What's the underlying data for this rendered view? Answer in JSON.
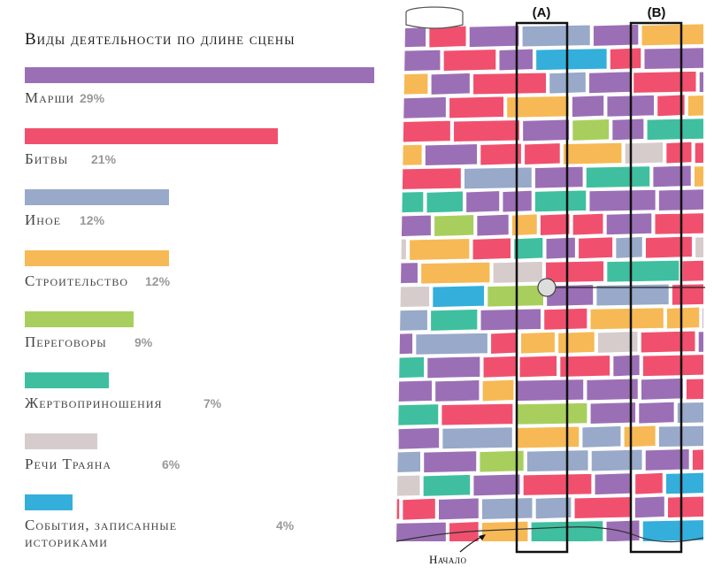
{
  "chart_data": {
    "type": "bar",
    "title": "Виды деятельности по длине сцены",
    "categories": [
      "Марши",
      "Битвы",
      "Иное",
      "Строительство",
      "Переговоры",
      "Жертвоприношения",
      "Речи Траяна",
      "События, записанные историками"
    ],
    "category_lines": [
      [
        "Марши"
      ],
      [
        "Битвы"
      ],
      [
        "Иное"
      ],
      [
        "Строительство"
      ],
      [
        "Переговоры"
      ],
      [
        "Жертвоприношения"
      ],
      [
        "Речи Траяна"
      ],
      [
        "События, записанные",
        "историками"
      ]
    ],
    "values": [
      29,
      21,
      12,
      12,
      9,
      7,
      6,
      4
    ],
    "value_labels": [
      "29%",
      "21%",
      "12%",
      "12%",
      "9%",
      "7%",
      "6%",
      "4%"
    ],
    "colors": [
      "#9b6fb5",
      "#f0506e",
      "#98a9c9",
      "#f7b955",
      "#a8cf5e",
      "#3fbf9f",
      "#d6cccc",
      "#34aedb"
    ]
  },
  "diagram": {
    "label_a": "(A)",
    "label_b": "(B)",
    "start_label": "Начало"
  }
}
